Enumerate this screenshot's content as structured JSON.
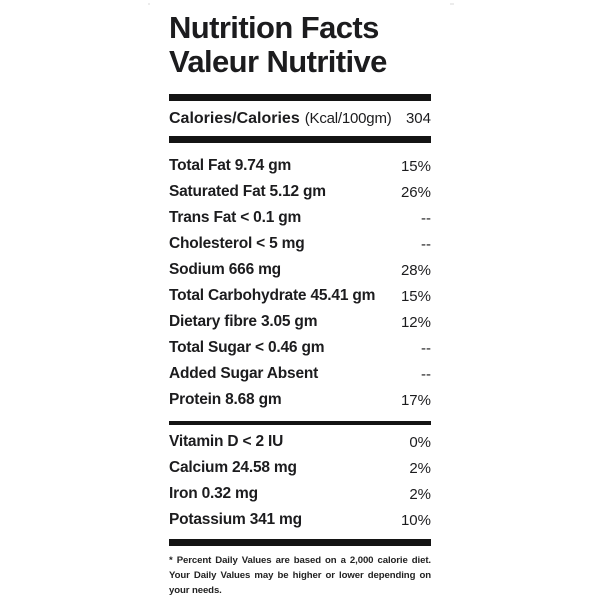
{
  "colors": {
    "ink": "#1c1c1e",
    "bar": "#141414",
    "edge_line": "#ececec",
    "background": "#ffffff"
  },
  "title": {
    "line1": "Nutrition Facts",
    "line2": "Valeur Nutritive"
  },
  "calories": {
    "label": "Calories/Calories",
    "unit": "(Kcal/100gm)",
    "value": "304"
  },
  "nutrients": [
    {
      "label": "Total Fat 9.74 gm",
      "value": "15%"
    },
    {
      "label": "Saturated Fat 5.12 gm",
      "value": "26%"
    },
    {
      "label": "Trans Fat < 0.1 gm",
      "value": "--"
    },
    {
      "label": "Cholesterol < 5 mg",
      "value": "--"
    },
    {
      "label": "Sodium 666 mg",
      "value": "28%"
    },
    {
      "label": "Total Carbohydrate 45.41 gm",
      "value": "15%"
    },
    {
      "label": "Dietary fibre 3.05 gm",
      "value": "12%"
    },
    {
      "label": "Total Sugar < 0.46 gm",
      "value": "--"
    },
    {
      "label": "Added Sugar Absent",
      "value": "--"
    },
    {
      "label": "Protein 8.68 gm",
      "value": "17%"
    }
  ],
  "micronutrients": [
    {
      "label": "Vitamin D < 2 IU",
      "value": "0%"
    },
    {
      "label": "Calcium 24.58 mg",
      "value": "2%"
    },
    {
      "label": "Iron 0.32 mg",
      "value": "2%"
    },
    {
      "label": "Potassium 341 mg",
      "value": "10%"
    }
  ],
  "footnote": "* Percent Daily Values are based on a 2,000 calorie diet. Your Daily Values may be higher or lower depending on your needs."
}
